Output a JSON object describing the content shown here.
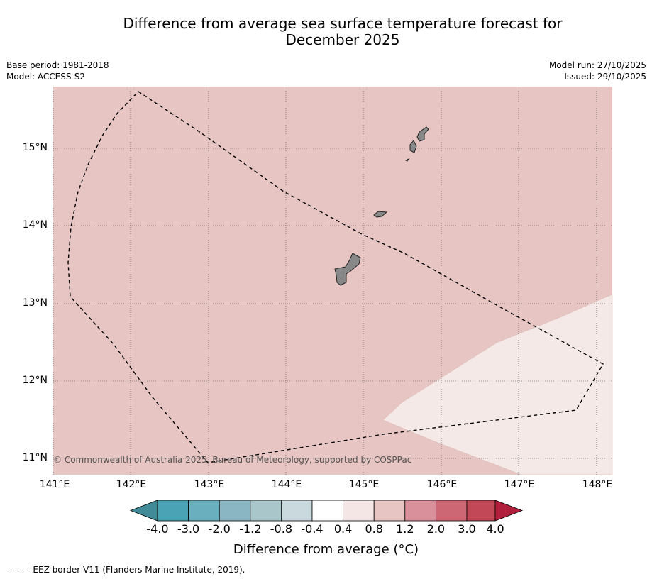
{
  "title_line1": "Difference from average sea surface temperature forecast for",
  "title_line2": "December 2025",
  "base_period": "Base period: 1981-2018",
  "model": "Model: ACCESS-S2",
  "model_run": "Model run: 27/10/2025",
  "issued": "Issued: 29/10/2025",
  "lat_labels": [
    "15°N",
    "14°N",
    "13°N",
    "12°N",
    "11°N"
  ],
  "lon_labels": [
    "141°E",
    "142°E",
    "143°E",
    "144°E",
    "145°E",
    "146°E",
    "147°E",
    "148°E"
  ],
  "copyright": "© Commonwealth of Australia 2025, Bureau of Meteorology, supported by COSPPac",
  "colorbar": {
    "ticks": [
      "-4.0",
      "-3.0",
      "-2.0",
      "-1.2",
      "-0.8",
      "-0.4",
      "0.4",
      "0.8",
      "1.2",
      "2.0",
      "3.0",
      "4.0"
    ],
    "colors": [
      "#418a97",
      "#4aa3b5",
      "#6aafbd",
      "#89b6c2",
      "#a9c6cb",
      "#c9d9dd",
      "#ffffff",
      "#f4e6e5",
      "#e6c5c2",
      "#d9909a",
      "#cd6774",
      "#c34857",
      "#b0203c"
    ],
    "label": "Difference from average (°C)"
  },
  "legend": "-- -- -- EEZ border V11 (Flanders Marine Institute, 2019).",
  "map_colors": {
    "main_anomaly": "#e6c5c2",
    "light_anomaly": "#f4e9e7",
    "land": "#888888"
  }
}
